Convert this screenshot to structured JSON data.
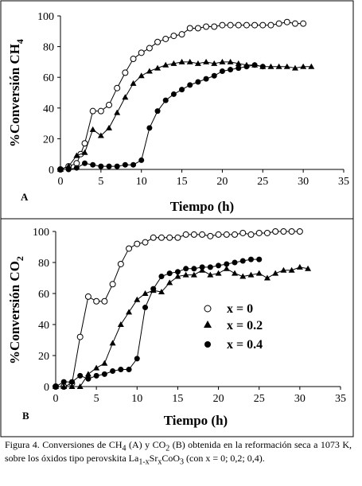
{
  "chart_data": [
    {
      "type": "scatter",
      "panel_label": "A",
      "xlabel": "Tiempo (h)",
      "ylabel_prefix": "%Conversión CH",
      "ylabel_sub": "4",
      "xlim": [
        0,
        35
      ],
      "ylim": [
        0,
        100
      ],
      "xticks": [
        0,
        5,
        10,
        15,
        20,
        25,
        30,
        35
      ],
      "yticks": [
        0,
        20,
        40,
        60,
        80,
        100
      ],
      "series": [
        {
          "marker": "open-circle",
          "x": [
            0,
            1,
            2,
            2.5,
            3,
            4,
            5,
            6,
            7,
            8,
            9,
            10,
            11,
            12,
            13,
            14,
            15,
            16,
            17,
            18,
            19,
            20,
            21,
            22,
            23,
            24,
            25,
            26,
            27,
            28,
            29,
            30
          ],
          "y": [
            0,
            2,
            4,
            10,
            17,
            38,
            38,
            42,
            53,
            63,
            72,
            76,
            79,
            83,
            85,
            87,
            88,
            92,
            92,
            93,
            93,
            94,
            94,
            94,
            94,
            94,
            94,
            94,
            95,
            96,
            95,
            95
          ]
        },
        {
          "marker": "filled-triangle",
          "x": [
            0,
            1,
            2,
            3,
            4,
            5,
            6,
            7,
            8,
            9,
            10,
            11,
            12,
            13,
            14,
            15,
            16,
            17,
            18,
            19,
            20,
            21,
            22,
            23,
            24,
            25,
            26,
            27,
            28,
            29,
            30,
            31
          ],
          "y": [
            0,
            2,
            9,
            11,
            26,
            22,
            27,
            37,
            47,
            56,
            61,
            64,
            66,
            68,
            69,
            70,
            70,
            69,
            70,
            69,
            70,
            70,
            69,
            68,
            68,
            67,
            67,
            67,
            67,
            66,
            67,
            67
          ]
        },
        {
          "marker": "filled-circle",
          "x": [
            0,
            1,
            2,
            3,
            4,
            5,
            6,
            7,
            8,
            9,
            10,
            11,
            12,
            13,
            14,
            15,
            16,
            17,
            18,
            19,
            20,
            21,
            22,
            23,
            24,
            25
          ],
          "y": [
            0,
            0,
            1,
            4,
            3,
            2,
            2,
            2,
            3,
            3,
            6,
            27,
            38,
            45,
            49,
            52,
            55,
            57,
            59,
            61,
            64,
            65,
            66,
            67,
            68,
            67
          ]
        }
      ]
    },
    {
      "type": "scatter",
      "panel_label": "B",
      "xlabel": "Tiempo (h)",
      "ylabel_prefix": "%Conversión CO",
      "ylabel_sub": "2",
      "xlim": [
        0,
        35
      ],
      "ylim": [
        0,
        100
      ],
      "xticks": [
        0,
        5,
        10,
        15,
        20,
        25,
        30,
        35
      ],
      "yticks": [
        0,
        20,
        40,
        60,
        80,
        100
      ],
      "legend": [
        {
          "marker": "open-circle",
          "label": "x = 0"
        },
        {
          "marker": "filled-triangle",
          "label": "x = 0.2"
        },
        {
          "marker": "filled-circle",
          "label": "x = 0.4"
        }
      ],
      "series": [
        {
          "marker": "open-circle",
          "x": [
            0,
            1,
            2,
            3,
            4,
            5,
            6,
            7,
            8,
            9,
            10,
            11,
            12,
            13,
            14,
            15,
            16,
            17,
            18,
            19,
            20,
            21,
            22,
            23,
            24,
            25,
            26,
            27,
            28,
            29,
            30
          ],
          "y": [
            0,
            0,
            2,
            32,
            58,
            55,
            55,
            66,
            79,
            89,
            92,
            93,
            96,
            96,
            96,
            96,
            98,
            98,
            98,
            97,
            98,
            98,
            98,
            99,
            98,
            99,
            99,
            100,
            100,
            100,
            100
          ]
        },
        {
          "marker": "filled-triangle",
          "x": [
            0,
            1,
            2,
            3,
            4,
            5,
            6,
            7,
            8,
            9,
            10,
            11,
            12,
            13,
            14,
            15,
            16,
            17,
            18,
            19,
            20,
            21,
            22,
            23,
            24,
            25,
            26,
            27,
            28,
            29,
            30,
            31
          ],
          "y": [
            0,
            0,
            0,
            0,
            8,
            12,
            15,
            28,
            40,
            48,
            56,
            60,
            62,
            61,
            67,
            71,
            72,
            72,
            75,
            72,
            73,
            76,
            73,
            71,
            72,
            73,
            70,
            73,
            75,
            75,
            77,
            76
          ]
        },
        {
          "marker": "filled-circle",
          "x": [
            0,
            1,
            2,
            3,
            4,
            5,
            6,
            7,
            8,
            9,
            10,
            11,
            12,
            13,
            14,
            15,
            16,
            17,
            18,
            19,
            20,
            21,
            22,
            23,
            24,
            25
          ],
          "y": [
            0,
            3,
            3,
            7,
            5,
            7,
            8,
            10,
            11,
            11,
            18,
            51,
            63,
            71,
            73,
            74,
            76,
            76,
            77,
            77,
            78,
            79,
            80,
            81,
            82,
            82
          ]
        }
      ]
    }
  ],
  "caption": {
    "line1": "Figura 4. Conversiones de CH",
    "sub1": "4",
    "mid1": " (A) y CO",
    "sub2": "2",
    "mid2": " (B) obtenida en la reformación seca a 1073 K, sobre los óxidos tipo perovskita La",
    "sub3": "1-x",
    "mid3": "Sr",
    "sub4": "x",
    "mid4": "CoO",
    "sub5": "3",
    "end": " (con x = 0; 0,2; 0,4)."
  }
}
